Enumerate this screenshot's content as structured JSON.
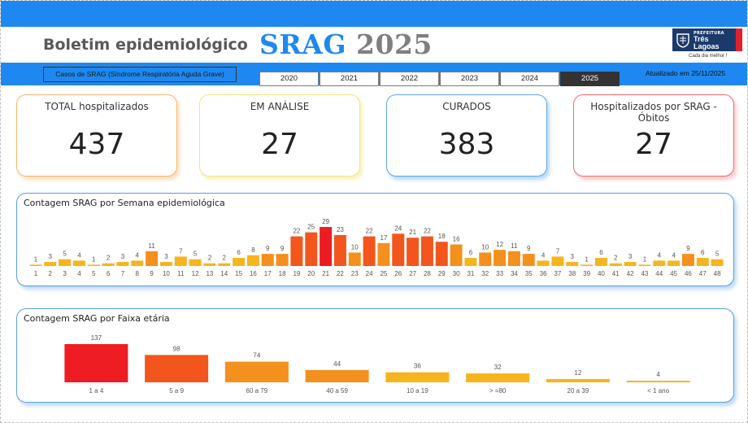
{
  "header": {
    "page_title": "Boletim epidemiológico",
    "big_title_srag": "SRAG",
    "big_title_year": "2025"
  },
  "logo": {
    "prefeitura": "PREFEITURA",
    "name_line1": "Três",
    "name_line2": "Lagoas",
    "tagline": "Cada dia melhor !"
  },
  "filter_bar": {
    "subtitle": "Casos de SRAG (Síndrome Respiratória Aguda Grave)",
    "years": [
      "2020",
      "2021",
      "2022",
      "2023",
      "2024",
      "2025"
    ],
    "selected_year": "2025",
    "updated": "Atualizado em 25/11/2025"
  },
  "kpis": {
    "total": {
      "label": "TOTAL hospitalizados",
      "value": "437"
    },
    "analise": {
      "label": "EM ANÁLISE",
      "value": "27"
    },
    "curados": {
      "label": "CURADOS",
      "value": "383"
    },
    "obitos": {
      "label": "Hospitalizados por SRAG - Óbitos",
      "value": "27"
    }
  },
  "colors": {
    "accent_blue": "#1e88f0",
    "bar_low": "#f6b51e",
    "bar_mid": "#f4901e",
    "bar_high": "#f2561d",
    "bar_peak": "#ee1d24"
  },
  "chart_data": [
    {
      "type": "bar",
      "title": "Contagem SRAG por Semana epidemiológica",
      "categories": [
        "1",
        "2",
        "3",
        "4",
        "5",
        "6",
        "7",
        "8",
        "9",
        "10",
        "11",
        "12",
        "13",
        "14",
        "15",
        "16",
        "17",
        "18",
        "19",
        "20",
        "21",
        "22",
        "23",
        "24",
        "25",
        "26",
        "27",
        "28",
        "29",
        "30",
        "31",
        "32",
        "33",
        "34",
        "35",
        "36",
        "37",
        "38",
        "39",
        "40",
        "41",
        "42",
        "43",
        "44",
        "45",
        "46",
        "47",
        "48"
      ],
      "values": [
        1,
        3,
        5,
        4,
        1,
        2,
        3,
        4,
        11,
        3,
        7,
        5,
        2,
        2,
        6,
        8,
        9,
        9,
        22,
        25,
        29,
        23,
        10,
        22,
        17,
        24,
        21,
        22,
        18,
        16,
        6,
        10,
        12,
        11,
        9,
        4,
        7,
        3,
        1,
        6,
        2,
        3,
        1,
        4,
        4,
        9,
        6,
        5
      ],
      "data_labels": true,
      "grid": false
    },
    {
      "type": "bar",
      "title": "Contagem SRAG por Faixa etária",
      "categories": [
        "1 a 4",
        "5 a 9",
        "60 a 79",
        "40 a 59",
        "10 a 19",
        "> =80",
        "20 a 39",
        "< 1 ano"
      ],
      "values": [
        137,
        98,
        74,
        44,
        36,
        32,
        12,
        4
      ],
      "data_labels": true,
      "grid": false
    }
  ]
}
